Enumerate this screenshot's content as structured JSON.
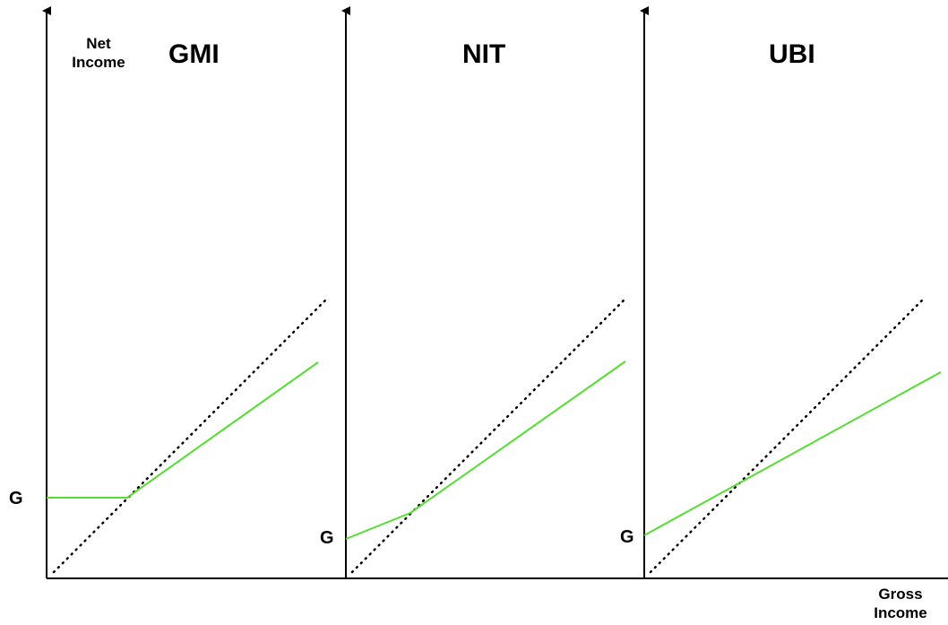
{
  "axes": {
    "y_label_line1": "Net",
    "y_label_line2": "Income",
    "x_label_line1": "Gross",
    "x_label_line2": "Income"
  },
  "panels": [
    {
      "title": "GMI",
      "g_label": "G"
    },
    {
      "title": "NIT",
      "g_label": "G"
    },
    {
      "title": "UBI",
      "g_label": "G"
    }
  ],
  "colors": {
    "net_income_line": "#55dd33",
    "reference_line": "#000000",
    "axis": "#000000"
  }
}
